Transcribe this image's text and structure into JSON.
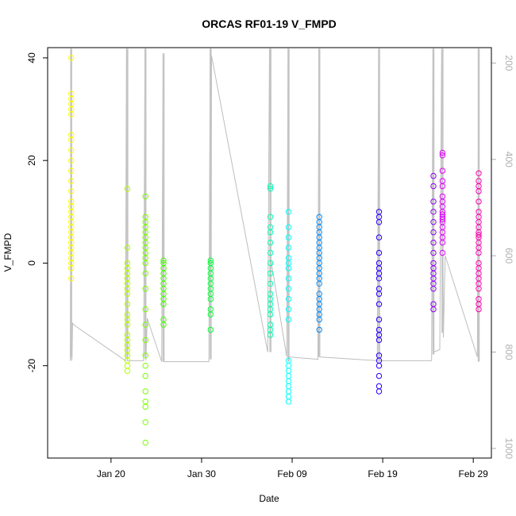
{
  "chart_data": {
    "type": "scatter",
    "title": "ORCAS RF01-19 V_FMPD",
    "xlabel": "Date",
    "ylabel": "V_FMPD",
    "x_axis": {
      "start": "2016-01-13",
      "end": "2016-03-02",
      "ticks": [
        {
          "date": "2016-01-20",
          "label": "Jan 20"
        },
        {
          "date": "2016-01-30",
          "label": "Jan 30"
        },
        {
          "date": "2016-02-09",
          "label": "Feb 09"
        },
        {
          "date": "2016-02-19",
          "label": "Feb 19"
        },
        {
          "date": "2016-02-29",
          "label": "Feb 29"
        }
      ]
    },
    "y_axis": {
      "ylim": [
        -38,
        42
      ],
      "ticks": [
        -20,
        0,
        20,
        40
      ]
    },
    "y2_axis": {
      "ylim": [
        1020,
        168
      ],
      "ticks": [
        200,
        400,
        600,
        800,
        1000
      ],
      "color": "#b0b0b0"
    },
    "grid": false,
    "legend": "none",
    "series": [
      {
        "date": "2016-01-15.6",
        "color": "#ffff00",
        "y": [
          40,
          33,
          32,
          31,
          30,
          29,
          25,
          24,
          22,
          20,
          18,
          16,
          14,
          12,
          11,
          10,
          9,
          8,
          7,
          6,
          5,
          4,
          3,
          2,
          1,
          0,
          -1,
          -3
        ],
        "y2_range": [
          170,
          810
        ]
      },
      {
        "date": "2016-01-21.8",
        "color": "#b2ff00",
        "y": [
          14.5,
          3,
          0,
          -1,
          -2,
          -3,
          -4,
          -5,
          -6,
          -8,
          -10,
          -11,
          -12,
          -14,
          -15,
          -16,
          -17,
          -18,
          -19,
          -20,
          -21
        ],
        "y2_range": [
          170,
          810
        ]
      },
      {
        "date": "2016-01-23.8",
        "color": "#7aff00",
        "y": [
          13,
          9,
          8,
          7,
          6,
          5,
          4,
          3,
          2,
          1,
          0,
          -2,
          -5,
          -9,
          -12,
          -15,
          -18,
          -20,
          -22,
          -25,
          -27,
          -28,
          -31,
          -35
        ],
        "y2_range": [
          170,
          810
        ]
      },
      {
        "date": "2016-01-25.8",
        "color": "#44ff00",
        "y": [
          0.5,
          0,
          -1,
          -2,
          -3,
          -4,
          -5,
          -6,
          -7,
          -8,
          -11,
          -12
        ],
        "y2_range": [
          180,
          820
        ]
      },
      {
        "date": "2016-01-31.0",
        "color": "#00ff33",
        "y": [
          0.5,
          0,
          -1,
          -2,
          -3,
          -4,
          -5,
          -6,
          -7,
          -9,
          -10,
          -13
        ],
        "y2_range": [
          170,
          815
        ]
      },
      {
        "date": "2016-02-06.6",
        "color": "#00ffb0",
        "y": [
          15,
          14.5,
          9,
          7,
          6,
          4,
          2,
          0,
          -2,
          -4,
          -6,
          -7,
          -8,
          -9,
          -10,
          -12,
          -13,
          -14
        ],
        "y2_range": [
          170,
          800
        ]
      },
      {
        "date": "2016-02-08.6",
        "color": "#00ffff",
        "y": [
          10,
          7,
          5,
          3,
          1,
          0,
          -1,
          -3,
          -5,
          -7,
          -9,
          -11,
          -19,
          -20,
          -21,
          -22,
          -23,
          -24,
          -25,
          -26,
          -27
        ],
        "y2_range": [
          170,
          820
        ]
      },
      {
        "date": "2016-02-12.0",
        "color": "#008cff",
        "y": [
          9,
          8,
          7,
          6,
          5,
          4,
          3,
          2,
          1,
          0,
          -1,
          -2,
          -3,
          -4,
          -6,
          -7,
          -8,
          -9,
          -10,
          -11,
          -13
        ],
        "y2_range": [
          170,
          810
        ]
      },
      {
        "date": "2016-02-18.6",
        "color": "#2600ff",
        "y": [
          10,
          9,
          8,
          5,
          2,
          0,
          -1,
          -2,
          -3,
          -5,
          -6,
          -8,
          -11,
          -13,
          -14,
          -15,
          -18,
          -19,
          -20,
          -22,
          -24,
          -25
        ],
        "y2_range": [
          170,
          820
        ]
      },
      {
        "date": "2016-02-24.6",
        "color": "#9000ff",
        "y": [
          17,
          15,
          12,
          10,
          8,
          6,
          4,
          2,
          0,
          -1,
          -2,
          -3,
          -4,
          -5,
          -8,
          -9
        ],
        "y2_range": [
          170,
          805
        ]
      },
      {
        "date": "2016-02-25.6",
        "color": "#e000ff",
        "y": [
          21.5,
          21,
          18,
          16,
          15,
          13,
          12,
          11,
          10,
          9.5,
          9,
          8.5,
          8,
          7,
          6,
          5,
          4,
          2
        ],
        "y2_range": [
          170,
          760
        ]
      },
      {
        "date": "2016-02-29.6",
        "color": "#ff00b0",
        "y": [
          17.5,
          16,
          15,
          14,
          12,
          10,
          9,
          8,
          7,
          6,
          5.5,
          5,
          4,
          3,
          2,
          0,
          -1,
          -2,
          -3,
          -4,
          -5,
          -7,
          -8,
          -9
        ],
        "y2_range": [
          170,
          820
        ]
      }
    ],
    "pressure_path": [
      [
        "2016-01-15.5",
        818
      ],
      [
        "2016-01-15.6",
        170
      ],
      [
        "2016-01-15.65",
        818
      ],
      [
        "2016-01-15.7",
        810
      ],
      [
        "2016-01-15.75",
        740
      ],
      [
        "2016-01-16.0",
        745
      ],
      [
        "2016-01-21.6",
        818
      ],
      [
        "2016-01-21.7",
        170
      ],
      [
        "2016-01-21.8",
        818
      ],
      [
        "2016-01-23.6",
        818
      ],
      [
        "2016-01-23.75",
        170
      ],
      [
        "2016-01-23.85",
        818
      ],
      [
        "2016-01-24.0",
        730
      ],
      [
        "2016-01-25.6",
        820
      ],
      [
        "2016-01-25.75",
        180
      ],
      [
        "2016-01-25.85",
        820
      ],
      [
        "2016-01-30.8",
        820
      ],
      [
        "2016-01-30.95",
        170
      ],
      [
        "2016-01-31.05",
        800
      ],
      [
        "2016-01-31.1",
        185
      ],
      [
        "2016-02-06.3",
        800
      ],
      [
        "2016-02-06.5",
        170
      ],
      [
        "2016-02-06.6",
        600
      ],
      [
        "2016-02-06.75",
        620
      ],
      [
        "2016-02-08.4",
        810
      ],
      [
        "2016-02-08.55",
        170
      ],
      [
        "2016-02-08.65",
        810
      ],
      [
        "2016-02-11.85",
        815
      ],
      [
        "2016-02-11.95",
        170
      ],
      [
        "2016-02-12.05",
        810
      ],
      [
        "2016-02-18.4",
        818
      ],
      [
        "2016-02-18.55",
        170
      ],
      [
        "2016-02-18.65",
        818
      ],
      [
        "2016-02-24.4",
        818
      ],
      [
        "2016-02-24.55",
        170
      ],
      [
        "2016-02-24.65",
        800
      ],
      [
        "2016-02-25.3",
        795
      ],
      [
        "2016-02-25.5",
        170
      ],
      [
        "2016-02-25.7",
        770
      ],
      [
        "2016-02-25.9",
        600
      ],
      [
        "2016-02-29.45",
        810
      ],
      [
        "2016-02-29.6",
        170
      ]
    ]
  }
}
